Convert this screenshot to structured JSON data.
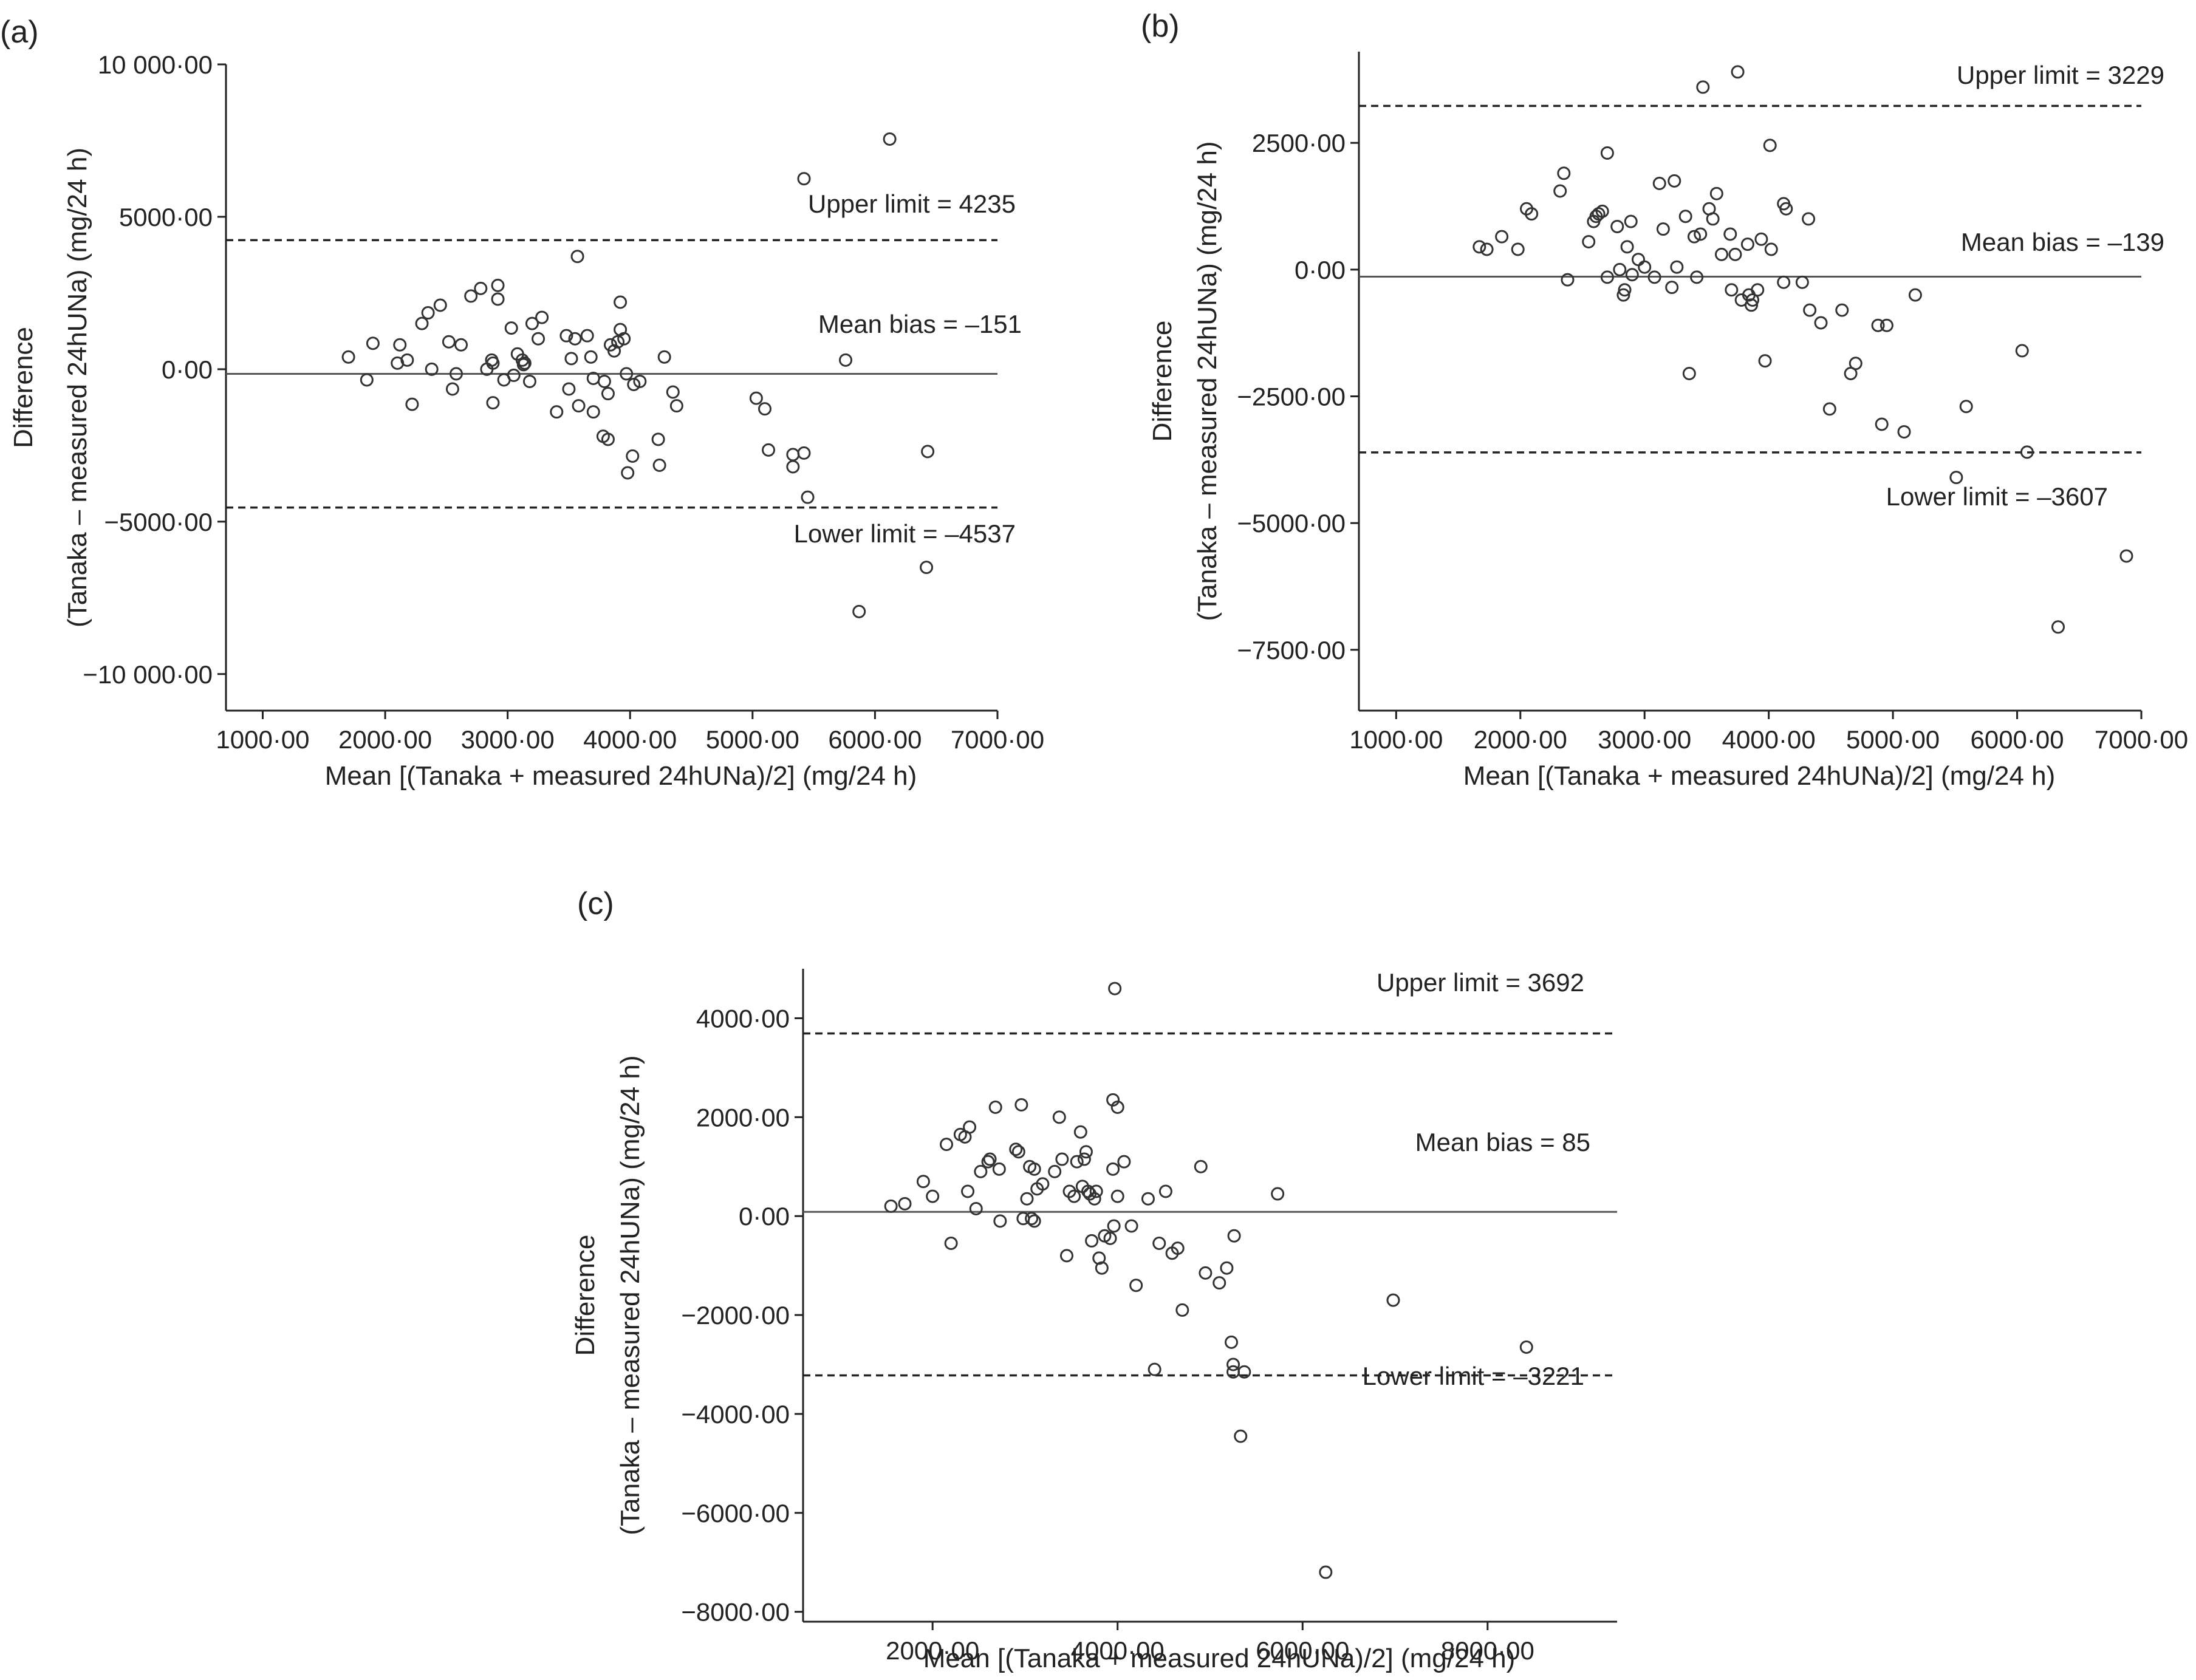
{
  "chart_data": [
    {
      "type": "scatter",
      "panel": "(a)",
      "xlabel": "Mean [(Tanaka + measured 24hUNa)/2] (mg/24 h)",
      "ylabel_line1": "Difference",
      "ylabel_line2": "(Tanaka – measured 24hUNa) (mg/24 h)",
      "xlim": [
        700,
        7000
      ],
      "ylim": [
        -11200,
        10000
      ],
      "xticks": [
        1000,
        2000,
        3000,
        4000,
        5000,
        6000,
        7000
      ],
      "xtick_labels": [
        "1000·00",
        "2000·00",
        "3000·00",
        "4000·00",
        "5000·00",
        "6000·00",
        "7000·00"
      ],
      "yticks": [
        10000,
        5000,
        0,
        -5000,
        -10000
      ],
      "ytick_labels": [
        "10 000·00",
        "5000·00",
        "0·00",
        "−5000·00",
        "−10 000·00"
      ],
      "mean_bias": -151,
      "upper_limit": 4235,
      "lower_limit": -4537,
      "mean_label": "Mean bias = –151",
      "upper_label": "Upper limit = 4235",
      "lower_label": "Lower limit = –4537",
      "points": [
        [
          1700,
          400
        ],
        [
          1850,
          -350
        ],
        [
          1900,
          850
        ],
        [
          2100,
          200
        ],
        [
          2120,
          800
        ],
        [
          2180,
          300
        ],
        [
          2220,
          -1150
        ],
        [
          2300,
          1500
        ],
        [
          2350,
          1850
        ],
        [
          2380,
          0
        ],
        [
          2450,
          2100
        ],
        [
          2520,
          900
        ],
        [
          2550,
          -650
        ],
        [
          2580,
          -150
        ],
        [
          2620,
          800
        ],
        [
          2700,
          2400
        ],
        [
          2780,
          2650
        ],
        [
          2830,
          0
        ],
        [
          2870,
          300
        ],
        [
          2880,
          200
        ],
        [
          2880,
          -1100
        ],
        [
          2920,
          2750
        ],
        [
          2920,
          2300
        ],
        [
          2970,
          -350
        ],
        [
          3030,
          1350
        ],
        [
          3050,
          -200
        ],
        [
          3080,
          500
        ],
        [
          3120,
          300
        ],
        [
          3130,
          150
        ],
        [
          3140,
          200
        ],
        [
          3180,
          -400
        ],
        [
          3200,
          1500
        ],
        [
          3250,
          1000
        ],
        [
          3280,
          1700
        ],
        [
          3400,
          -1400
        ],
        [
          3480,
          1100
        ],
        [
          3500,
          -650
        ],
        [
          3520,
          350
        ],
        [
          3550,
          1000
        ],
        [
          3570,
          3700
        ],
        [
          3580,
          -1200
        ],
        [
          3650,
          1100
        ],
        [
          3680,
          400
        ],
        [
          3700,
          -300
        ],
        [
          3700,
          -1400
        ],
        [
          3780,
          -2200
        ],
        [
          3790,
          -400
        ],
        [
          3820,
          -800
        ],
        [
          3820,
          -2300
        ],
        [
          3840,
          800
        ],
        [
          3870,
          600
        ],
        [
          3900,
          900
        ],
        [
          3920,
          1300
        ],
        [
          3920,
          2200
        ],
        [
          3950,
          1000
        ],
        [
          3970,
          -150
        ],
        [
          3980,
          -3400
        ],
        [
          4020,
          -2850
        ],
        [
          4030,
          -500
        ],
        [
          4080,
          -400
        ],
        [
          4230,
          -2300
        ],
        [
          4240,
          -3150
        ],
        [
          4280,
          400
        ],
        [
          4350,
          -750
        ],
        [
          4380,
          -1200
        ],
        [
          5030,
          -950
        ],
        [
          5100,
          -1300
        ],
        [
          5130,
          -2650
        ],
        [
          5330,
          -3200
        ],
        [
          5330,
          -2800
        ],
        [
          5420,
          -2750
        ],
        [
          5420,
          6250
        ],
        [
          5450,
          -4200
        ],
        [
          5760,
          300
        ],
        [
          5870,
          -7950
        ],
        [
          6120,
          7550
        ],
        [
          6420,
          -6500
        ],
        [
          6430,
          -2700
        ]
      ]
    },
    {
      "type": "scatter",
      "panel": "(b)",
      "xlabel": "Mean [(Tanaka + measured 24hUNa)/2] (mg/24 h)",
      "ylabel_line1": "Difference",
      "ylabel_line2": "(Tanaka – measured 24hUNa) (mg/24 h)",
      "xlim": [
        700,
        7000
      ],
      "ylim": [
        -8700,
        4300
      ],
      "xticks": [
        1000,
        2000,
        3000,
        4000,
        5000,
        6000,
        7000
      ],
      "xtick_labels": [
        "1000·00",
        "2000·00",
        "3000·00",
        "4000·00",
        "5000·00",
        "6000·00",
        "7000·00"
      ],
      "yticks": [
        2500,
        0,
        -2500,
        -5000,
        -7500
      ],
      "ytick_labels": [
        "2500·00",
        "0·00",
        "−2500·00",
        "−5000·00",
        "−7500·00"
      ],
      "mean_bias": -139,
      "upper_limit": 3229,
      "lower_limit": -3607,
      "mean_label": "Mean bias = –139",
      "upper_label": "Upper limit = 3229",
      "lower_label": "Lower limit = –3607",
      "points": [
        [
          1670,
          450
        ],
        [
          1730,
          400
        ],
        [
          1850,
          650
        ],
        [
          1980,
          400
        ],
        [
          2050,
          1200
        ],
        [
          2090,
          1100
        ],
        [
          2320,
          1550
        ],
        [
          2350,
          1900
        ],
        [
          2380,
          -200
        ],
        [
          2550,
          550
        ],
        [
          2590,
          950
        ],
        [
          2610,
          1050
        ],
        [
          2630,
          1100
        ],
        [
          2660,
          1150
        ],
        [
          2700,
          -150
        ],
        [
          2700,
          2300
        ],
        [
          2780,
          850
        ],
        [
          2800,
          0
        ],
        [
          2830,
          -500
        ],
        [
          2840,
          -400
        ],
        [
          2860,
          450
        ],
        [
          2890,
          950
        ],
        [
          2900,
          -100
        ],
        [
          2950,
          200
        ],
        [
          3000,
          50
        ],
        [
          3080,
          -150
        ],
        [
          3120,
          1700
        ],
        [
          3150,
          800
        ],
        [
          3220,
          -350
        ],
        [
          3240,
          1750
        ],
        [
          3260,
          50
        ],
        [
          3330,
          1050
        ],
        [
          3360,
          -2050
        ],
        [
          3400,
          650
        ],
        [
          3420,
          -150
        ],
        [
          3450,
          700
        ],
        [
          3470,
          3600
        ],
        [
          3520,
          1200
        ],
        [
          3550,
          1000
        ],
        [
          3580,
          1500
        ],
        [
          3620,
          300
        ],
        [
          3690,
          700
        ],
        [
          3700,
          -400
        ],
        [
          3730,
          300
        ],
        [
          3750,
          3900
        ],
        [
          3780,
          -600
        ],
        [
          3830,
          500
        ],
        [
          3840,
          -500
        ],
        [
          3860,
          -700
        ],
        [
          3870,
          -600
        ],
        [
          3910,
          -400
        ],
        [
          3940,
          600
        ],
        [
          3970,
          -1800
        ],
        [
          4010,
          2450
        ],
        [
          4020,
          400
        ],
        [
          4120,
          1300
        ],
        [
          4120,
          -250
        ],
        [
          4140,
          1200
        ],
        [
          4270,
          -250
        ],
        [
          4320,
          1000
        ],
        [
          4330,
          -800
        ],
        [
          4420,
          -1050
        ],
        [
          4490,
          -2750
        ],
        [
          4590,
          -800
        ],
        [
          4660,
          -2050
        ],
        [
          4700,
          -1850
        ],
        [
          4880,
          -1100
        ],
        [
          4910,
          -3050
        ],
        [
          4950,
          -1100
        ],
        [
          5090,
          -3200
        ],
        [
          5180,
          -500
        ],
        [
          5510,
          -4100
        ],
        [
          5590,
          -2700
        ],
        [
          6040,
          -1600
        ],
        [
          6080,
          -3600
        ],
        [
          6330,
          -7050
        ],
        [
          6880,
          -5650
        ]
      ]
    },
    {
      "type": "scatter",
      "panel": "(c)",
      "xlabel": "Mean [(Tanaka + measured 24hUNa)/2] (mg/24 h)",
      "ylabel_line1": "Difference",
      "ylabel_line2": "(Tanaka – measured 24hUNa) (mg/24 h)",
      "xlim": [
        600,
        9400
      ],
      "ylim": [
        -8200,
        5000
      ],
      "xticks": [
        2000,
        4000,
        6000,
        8000
      ],
      "xtick_labels": [
        "2000·00",
        "4000·00",
        "6000·00",
        "8000·00"
      ],
      "yticks": [
        4000,
        2000,
        0,
        -2000,
        -4000,
        -6000,
        -8000
      ],
      "ytick_labels": [
        "4000·00",
        "2000·00",
        "0·00",
        "−2000·00",
        "−4000·00",
        "−6000·00",
        "−8000·00"
      ],
      "mean_bias": 85,
      "upper_limit": 3692,
      "lower_limit": -3221,
      "mean_label": "Mean bias = 85",
      "upper_label": "Upper limit = 3692",
      "lower_label": "Lower limit = –3221",
      "points": [
        [
          1550,
          200
        ],
        [
          1700,
          250
        ],
        [
          1900,
          700
        ],
        [
          2000,
          400
        ],
        [
          2150,
          1450
        ],
        [
          2200,
          -550
        ],
        [
          2300,
          1650
        ],
        [
          2350,
          1600
        ],
        [
          2380,
          500
        ],
        [
          2400,
          1800
        ],
        [
          2470,
          150
        ],
        [
          2520,
          900
        ],
        [
          2600,
          1100
        ],
        [
          2620,
          1150
        ],
        [
          2680,
          2200
        ],
        [
          2720,
          950
        ],
        [
          2730,
          -100
        ],
        [
          2900,
          1350
        ],
        [
          2930,
          1300
        ],
        [
          2960,
          2250
        ],
        [
          2980,
          -50
        ],
        [
          3020,
          350
        ],
        [
          3050,
          1000
        ],
        [
          3070,
          -50
        ],
        [
          3100,
          -100
        ],
        [
          3100,
          950
        ],
        [
          3130,
          550
        ],
        [
          3190,
          650
        ],
        [
          3320,
          900
        ],
        [
          3370,
          2000
        ],
        [
          3400,
          1150
        ],
        [
          3450,
          -800
        ],
        [
          3480,
          500
        ],
        [
          3530,
          400
        ],
        [
          3560,
          1100
        ],
        [
          3600,
          1700
        ],
        [
          3620,
          600
        ],
        [
          3640,
          1150
        ],
        [
          3660,
          1300
        ],
        [
          3680,
          500
        ],
        [
          3700,
          450
        ],
        [
          3720,
          -500
        ],
        [
          3750,
          350
        ],
        [
          3770,
          500
        ],
        [
          3800,
          -850
        ],
        [
          3830,
          -1050
        ],
        [
          3860,
          -400
        ],
        [
          3920,
          -450
        ],
        [
          3950,
          950
        ],
        [
          3950,
          2350
        ],
        [
          3960,
          -200
        ],
        [
          4000,
          2200
        ],
        [
          4000,
          400
        ],
        [
          4070,
          1100
        ],
        [
          4150,
          -200
        ],
        [
          4200,
          -1400
        ],
        [
          4330,
          350
        ],
        [
          4400,
          -3100
        ],
        [
          4450,
          -550
        ],
        [
          4520,
          500
        ],
        [
          4590,
          -750
        ],
        [
          4650,
          -650
        ],
        [
          4700,
          -1900
        ],
        [
          4900,
          1000
        ],
        [
          4950,
          -1150
        ],
        [
          5100,
          -1350
        ],
        [
          5180,
          -1050
        ],
        [
          5230,
          -2550
        ],
        [
          5250,
          -3000
        ],
        [
          5250,
          -3150
        ],
        [
          5260,
          -400
        ],
        [
          5330,
          -4450
        ],
        [
          5370,
          -3150
        ],
        [
          5730,
          450
        ],
        [
          6250,
          -7200
        ],
        [
          6980,
          -1700
        ],
        [
          8420,
          -2650
        ],
        [
          3970,
          4600
        ]
      ]
    }
  ]
}
